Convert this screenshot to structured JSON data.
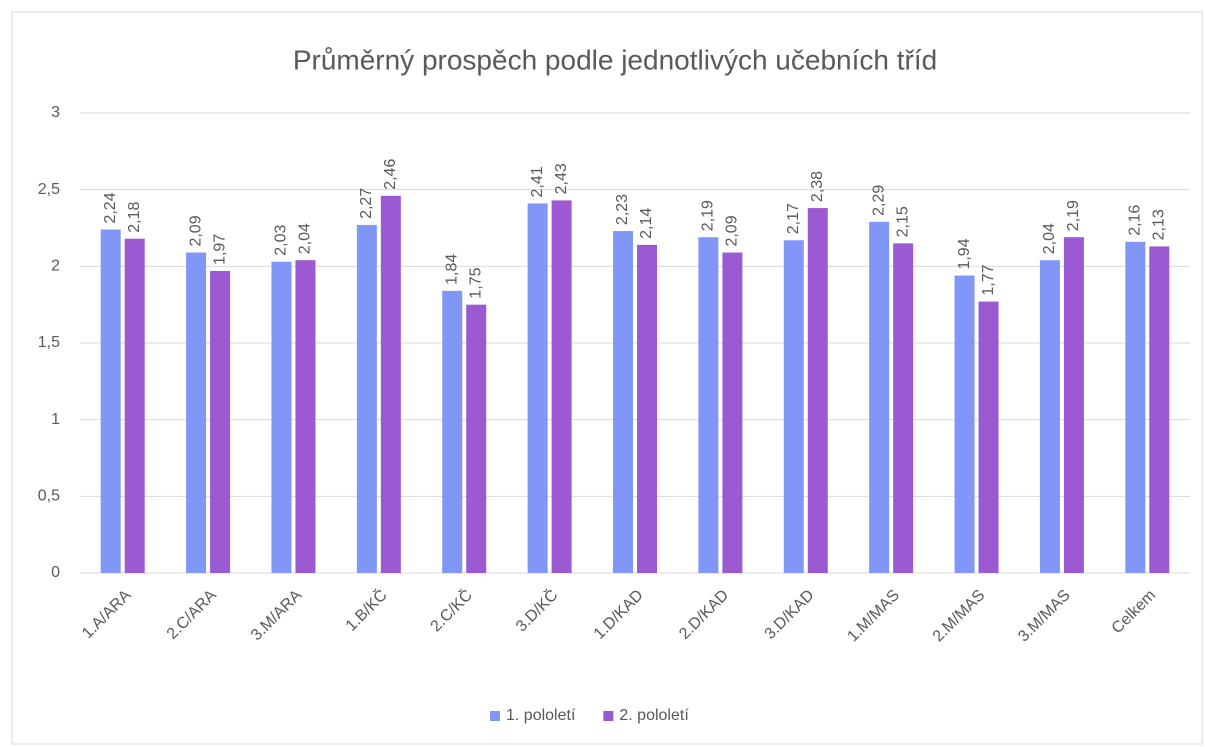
{
  "chart_data": {
    "type": "bar",
    "title": "Průměrný prospěch podle jednotlivých učebních tříd",
    "categories": [
      "1.A/ARA",
      "2.C/ARA",
      "3.M/ARA",
      "1.B/KČ",
      "2.C/KČ",
      "3.D/KČ",
      "1.D/KAD",
      "2.D/KAD",
      "3.D/KAD",
      "1.M/MAS",
      "2.M/MAS",
      "3.M/MAS",
      "Celkem"
    ],
    "series": [
      {
        "name": "1. pololetí",
        "color": "#8097f8",
        "values": [
          2.24,
          2.09,
          2.03,
          2.27,
          1.84,
          2.41,
          2.23,
          2.19,
          2.17,
          2.29,
          1.94,
          2.04,
          2.16
        ],
        "value_labels": [
          "2,24",
          "2,09",
          "2,03",
          "2,27",
          "1,84",
          "2,41",
          "2,23",
          "2,19",
          "2,17",
          "2,29",
          "1,94",
          "2,04",
          "2,16"
        ]
      },
      {
        "name": "2. pololetí",
        "color": "#9c5ad2",
        "values": [
          2.18,
          1.97,
          2.04,
          2.46,
          1.75,
          2.43,
          2.14,
          2.09,
          2.38,
          2.15,
          1.77,
          2.19,
          2.13
        ],
        "value_labels": [
          "2,18",
          "1,97",
          "2,04",
          "2,46",
          "1,75",
          "2,43",
          "2,14",
          "2,09",
          "2,38",
          "2,15",
          "1,77",
          "2,19",
          "2,13"
        ]
      }
    ],
    "ylim": [
      0,
      3
    ],
    "yticks": [
      0,
      {
        "value": 0.5,
        "label": "0,5"
      },
      1,
      {
        "value": 1.5,
        "label": "1,5"
      },
      2,
      {
        "value": 2.5,
        "label": "2,5"
      },
      3
    ],
    "grid": true,
    "legend": "bottom"
  }
}
